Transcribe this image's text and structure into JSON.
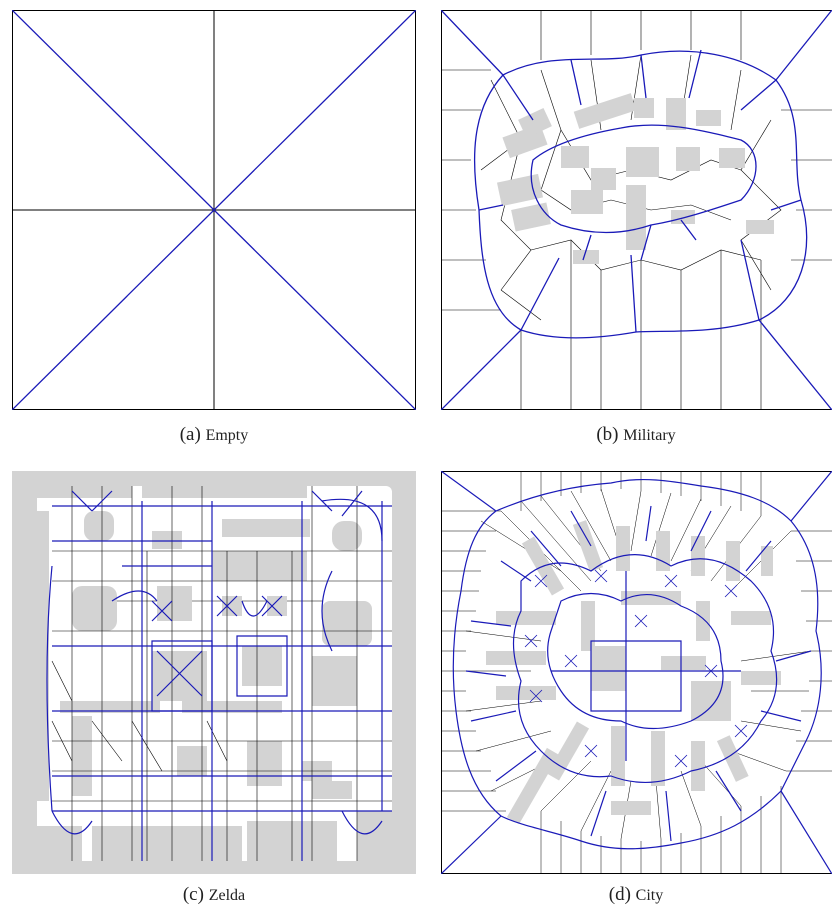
{
  "figure": {
    "panels": [
      {
        "letter": "(a)",
        "name": "Empty"
      },
      {
        "letter": "(b)",
        "name": "Military"
      },
      {
        "letter": "(c)",
        "name": "Zelda"
      },
      {
        "letter": "(d)",
        "name": "City"
      }
    ]
  },
  "colors": {
    "medial_axis": "#1a1ab8",
    "edges": "#000000",
    "obstacles": "#d3d3d3",
    "background": "#ffffff"
  }
}
